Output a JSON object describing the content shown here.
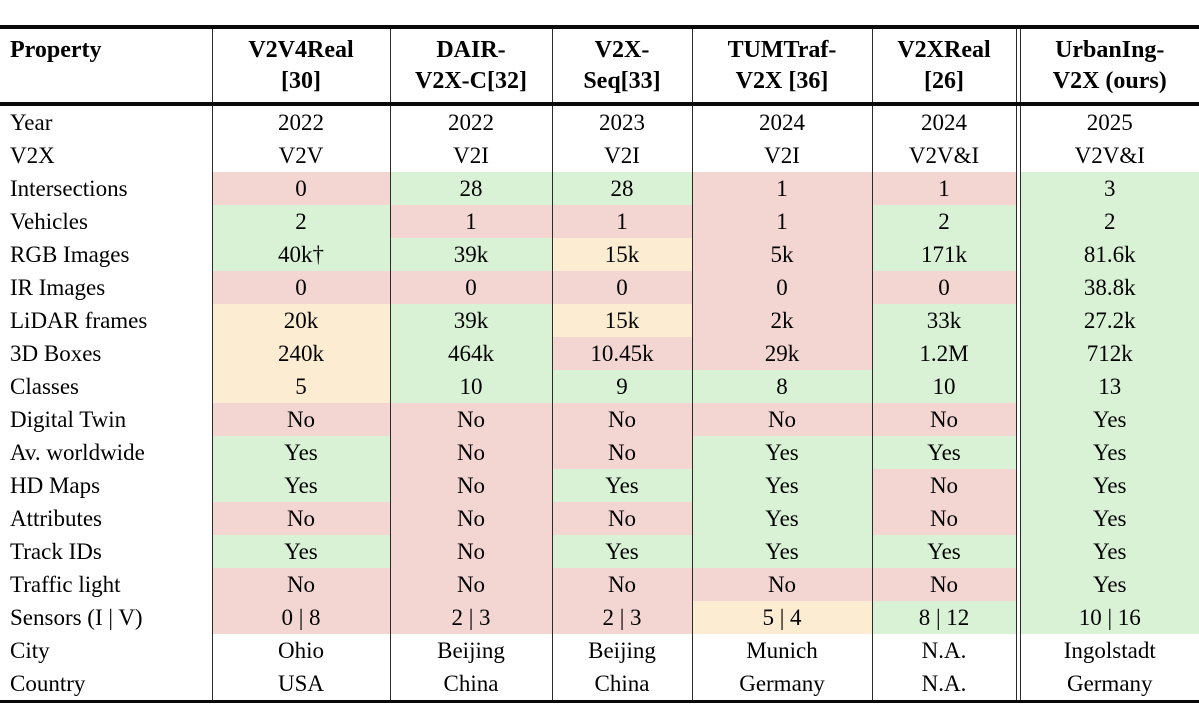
{
  "table": {
    "colors": {
      "g": "#d9f2d5",
      "r": "#f3d5d2",
      "o": "#fcecd2"
    },
    "columns": [
      {
        "id": "property",
        "lines": [
          "Property"
        ]
      },
      {
        "id": "v2v4real",
        "lines": [
          "V2V4Real",
          "[30]"
        ]
      },
      {
        "id": "dair-v2x-c",
        "lines": [
          "DAIR-",
          "V2X-C[32]"
        ]
      },
      {
        "id": "v2x-seq",
        "lines": [
          "V2X-",
          "Seq[33]"
        ]
      },
      {
        "id": "tumtraf-v2x",
        "lines": [
          "TUMTraf-",
          "V2X [36]"
        ]
      },
      {
        "id": "v2xreal",
        "lines": [
          "V2XReal",
          "[26]"
        ]
      },
      {
        "id": "urbaning-v2x",
        "lines": [
          "UrbanIng-",
          "V2X (ours)"
        ]
      }
    ],
    "rows": [
      {
        "property": "Year",
        "cells": [
          {
            "v": "2022",
            "c": ""
          },
          {
            "v": "2022",
            "c": ""
          },
          {
            "v": "2023",
            "c": ""
          },
          {
            "v": "2024",
            "c": ""
          },
          {
            "v": "2024",
            "c": ""
          },
          {
            "v": "2025",
            "c": ""
          }
        ]
      },
      {
        "property": "V2X",
        "cells": [
          {
            "v": "V2V",
            "c": ""
          },
          {
            "v": "V2I",
            "c": ""
          },
          {
            "v": "V2I",
            "c": ""
          },
          {
            "v": "V2I",
            "c": ""
          },
          {
            "v": "V2V&I",
            "c": ""
          },
          {
            "v": "V2V&I",
            "c": ""
          }
        ]
      },
      {
        "property": "Intersections",
        "cells": [
          {
            "v": "0",
            "c": "r"
          },
          {
            "v": "28",
            "c": "g"
          },
          {
            "v": "28",
            "c": "g"
          },
          {
            "v": "1",
            "c": "r"
          },
          {
            "v": "1",
            "c": "r"
          },
          {
            "v": "3",
            "c": "g"
          }
        ]
      },
      {
        "property": "Vehicles",
        "cells": [
          {
            "v": "2",
            "c": "g"
          },
          {
            "v": "1",
            "c": "r"
          },
          {
            "v": "1",
            "c": "r"
          },
          {
            "v": "1",
            "c": "r"
          },
          {
            "v": "2",
            "c": "g"
          },
          {
            "v": "2",
            "c": "g"
          }
        ]
      },
      {
        "property": "RGB Images",
        "cells": [
          {
            "v": "40k†",
            "c": "g"
          },
          {
            "v": "39k",
            "c": "g"
          },
          {
            "v": "15k",
            "c": "o"
          },
          {
            "v": "5k",
            "c": "r"
          },
          {
            "v": "171k",
            "c": "g"
          },
          {
            "v": "81.6k",
            "c": "g"
          }
        ]
      },
      {
        "property": "IR Images",
        "cells": [
          {
            "v": "0",
            "c": "r"
          },
          {
            "v": "0",
            "c": "r"
          },
          {
            "v": "0",
            "c": "r"
          },
          {
            "v": "0",
            "c": "r"
          },
          {
            "v": "0",
            "c": "r"
          },
          {
            "v": "38.8k",
            "c": "g"
          }
        ]
      },
      {
        "property": "LiDAR frames",
        "cells": [
          {
            "v": "20k",
            "c": "o"
          },
          {
            "v": "39k",
            "c": "g"
          },
          {
            "v": "15k",
            "c": "o"
          },
          {
            "v": "2k",
            "c": "r"
          },
          {
            "v": "33k",
            "c": "g"
          },
          {
            "v": "27.2k",
            "c": "g"
          }
        ]
      },
      {
        "property": "3D Boxes",
        "cells": [
          {
            "v": "240k",
            "c": "o"
          },
          {
            "v": "464k",
            "c": "g"
          },
          {
            "v": "10.45k",
            "c": "r"
          },
          {
            "v": "29k",
            "c": "r"
          },
          {
            "v": "1.2M",
            "c": "g"
          },
          {
            "v": "712k",
            "c": "g"
          }
        ]
      },
      {
        "property": "Classes",
        "cells": [
          {
            "v": "5",
            "c": "o"
          },
          {
            "v": "10",
            "c": "g"
          },
          {
            "v": "9",
            "c": "g"
          },
          {
            "v": "8",
            "c": "g"
          },
          {
            "v": "10",
            "c": "g"
          },
          {
            "v": "13",
            "c": "g"
          }
        ]
      },
      {
        "property": "Digital Twin",
        "cells": [
          {
            "v": "No",
            "c": "r"
          },
          {
            "v": "No",
            "c": "r"
          },
          {
            "v": "No",
            "c": "r"
          },
          {
            "v": "No",
            "c": "r"
          },
          {
            "v": "No",
            "c": "r"
          },
          {
            "v": "Yes",
            "c": "g"
          }
        ]
      },
      {
        "property": "Av. worldwide",
        "cells": [
          {
            "v": "Yes",
            "c": "g"
          },
          {
            "v": "No",
            "c": "r"
          },
          {
            "v": "No",
            "c": "r"
          },
          {
            "v": "Yes",
            "c": "g"
          },
          {
            "v": "Yes",
            "c": "g"
          },
          {
            "v": "Yes",
            "c": "g"
          }
        ]
      },
      {
        "property": "HD Maps",
        "cells": [
          {
            "v": "Yes",
            "c": "g"
          },
          {
            "v": "No",
            "c": "r"
          },
          {
            "v": "Yes",
            "c": "g"
          },
          {
            "v": "Yes",
            "c": "g"
          },
          {
            "v": "No",
            "c": "r"
          },
          {
            "v": "Yes",
            "c": "g"
          }
        ]
      },
      {
        "property": "Attributes",
        "cells": [
          {
            "v": "No",
            "c": "r"
          },
          {
            "v": "No",
            "c": "r"
          },
          {
            "v": "No",
            "c": "r"
          },
          {
            "v": "Yes",
            "c": "g"
          },
          {
            "v": "No",
            "c": "r"
          },
          {
            "v": "Yes",
            "c": "g"
          }
        ]
      },
      {
        "property": "Track IDs",
        "cells": [
          {
            "v": "Yes",
            "c": "g"
          },
          {
            "v": "No",
            "c": "r"
          },
          {
            "v": "Yes",
            "c": "g"
          },
          {
            "v": "Yes",
            "c": "g"
          },
          {
            "v": "Yes",
            "c": "g"
          },
          {
            "v": "Yes",
            "c": "g"
          }
        ]
      },
      {
        "property": "Traffic light",
        "cells": [
          {
            "v": "No",
            "c": "r"
          },
          {
            "v": "No",
            "c": "r"
          },
          {
            "v": "No",
            "c": "r"
          },
          {
            "v": "No",
            "c": "r"
          },
          {
            "v": "No",
            "c": "r"
          },
          {
            "v": "Yes",
            "c": "g"
          }
        ]
      },
      {
        "property": "Sensors (I | V)",
        "cells": [
          {
            "v": "0 | 8",
            "c": "r"
          },
          {
            "v": "2 | 3",
            "c": "r"
          },
          {
            "v": "2 | 3",
            "c": "r"
          },
          {
            "v": "5 | 4",
            "c": "o"
          },
          {
            "v": "8 | 12",
            "c": "g"
          },
          {
            "v": "10 | 16",
            "c": "g"
          }
        ]
      },
      {
        "property": "City",
        "cells": [
          {
            "v": "Ohio",
            "c": ""
          },
          {
            "v": "Beijing",
            "c": ""
          },
          {
            "v": "Beijing",
            "c": ""
          },
          {
            "v": "Munich",
            "c": ""
          },
          {
            "v": "N.A.",
            "c": ""
          },
          {
            "v": "Ingolstadt",
            "c": ""
          }
        ]
      },
      {
        "property": "Country",
        "cells": [
          {
            "v": "USA",
            "c": ""
          },
          {
            "v": "China",
            "c": ""
          },
          {
            "v": "China",
            "c": ""
          },
          {
            "v": "Germany",
            "c": ""
          },
          {
            "v": "N.A.",
            "c": ""
          },
          {
            "v": "Germany",
            "c": ""
          }
        ]
      }
    ]
  }
}
